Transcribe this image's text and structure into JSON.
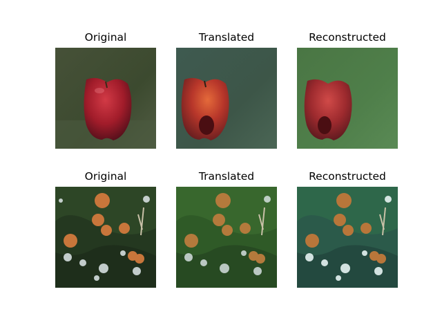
{
  "rows": [
    {
      "titles": [
        "Original",
        "Translated",
        "Reconstructed"
      ],
      "images": [
        {
          "subject": "apple",
          "variant": "original",
          "bg": "#3b4a2e",
          "fruit": "#a31f2a"
        },
        {
          "subject": "apple",
          "variant": "translated",
          "bg": "#3e5a50",
          "fruit": "#b8322a"
        },
        {
          "subject": "apple",
          "variant": "reconstructed",
          "bg": "#4c7a46",
          "fruit": "#9d2a2e"
        }
      ]
    },
    {
      "titles": [
        "Original",
        "Translated",
        "Reconstructed"
      ],
      "images": [
        {
          "subject": "orange-tree",
          "variant": "original",
          "bg": "#243820",
          "fruit": "#c8763b"
        },
        {
          "subject": "orange-tree",
          "variant": "translated",
          "bg": "#2f5a27",
          "fruit": "#b47a3c"
        },
        {
          "subject": "orange-tree",
          "variant": "reconstructed",
          "bg": "#2b5a4a",
          "fruit": "#b8763a"
        }
      ]
    }
  ]
}
